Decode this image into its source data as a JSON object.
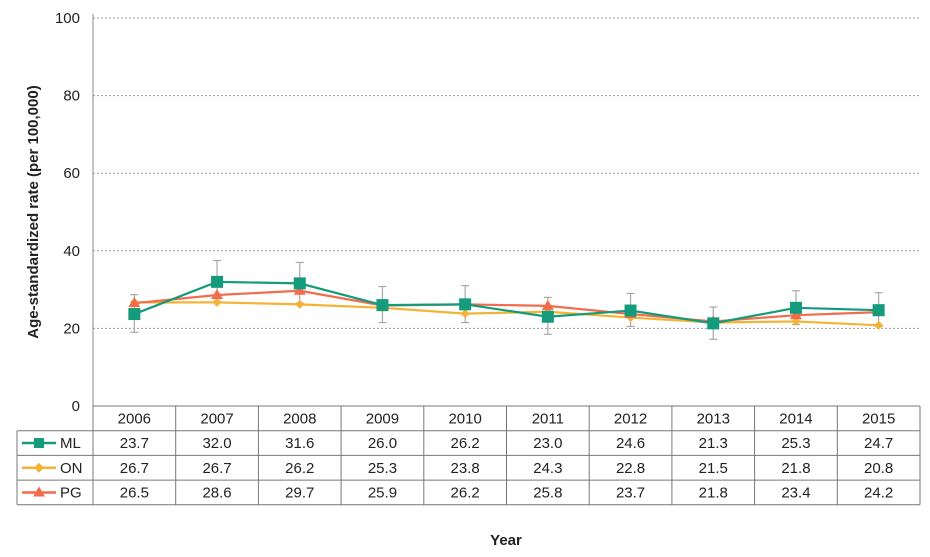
{
  "chart_data": {
    "type": "line",
    "title": "",
    "xlabel": "Year",
    "ylabel": "Age-standardized rate (per 100,000)",
    "ylim": [
      0,
      100
    ],
    "yticks": [
      "0",
      "20",
      "40",
      "60",
      "80",
      "100"
    ],
    "grid": true,
    "legend": "data-table-left",
    "categories": [
      "2006",
      "2007",
      "2008",
      "2009",
      "2010",
      "2011",
      "2012",
      "2013",
      "2014",
      "2015"
    ],
    "series": [
      {
        "name": "ML",
        "color": "#139B7C",
        "marker": "square",
        "values": [
          23.7,
          32.0,
          31.6,
          26.0,
          26.2,
          23.0,
          24.6,
          21.3,
          25.3,
          24.7
        ],
        "labels": [
          "23.7",
          "32.0",
          "31.6",
          "26.0",
          "26.2",
          "23.0",
          "24.6",
          "21.3",
          "25.3",
          "24.7"
        ],
        "error_low": [
          19.0,
          27.0,
          26.5,
          21.5,
          21.5,
          18.5,
          20.5,
          17.2,
          21.0,
          20.5
        ],
        "error_high": [
          28.7,
          37.5,
          37.0,
          30.8,
          31.0,
          28.0,
          29.0,
          25.5,
          29.7,
          29.2
        ]
      },
      {
        "name": "ON",
        "color": "#F5B335",
        "marker": "diamond",
        "values": [
          26.7,
          26.7,
          26.2,
          25.3,
          23.8,
          24.3,
          22.8,
          21.5,
          21.8,
          20.8
        ],
        "labels": [
          "26.7",
          "26.7",
          "26.2",
          "25.3",
          "23.8",
          "24.3",
          "22.8",
          "21.5",
          "21.8",
          "20.8"
        ]
      },
      {
        "name": "PG",
        "color": "#F26B4A",
        "marker": "triangle",
        "values": [
          26.5,
          28.6,
          29.7,
          25.9,
          26.2,
          25.8,
          23.7,
          21.8,
          23.4,
          24.2
        ],
        "labels": [
          "26.5",
          "28.6",
          "29.7",
          "25.9",
          "26.2",
          "25.8",
          "23.7",
          "21.8",
          "23.4",
          "24.2"
        ]
      }
    ]
  }
}
